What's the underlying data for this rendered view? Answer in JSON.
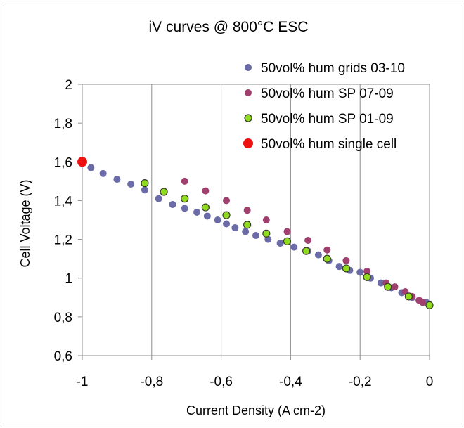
{
  "chart_data": {
    "type": "scatter",
    "title": "iV curves @  800°C   ESC",
    "xlabel": "Current Density (A cm-2)",
    "ylabel": "Cell Voltage (V)",
    "xlim": [
      -1,
      0
    ],
    "ylim": [
      0.6,
      2.0
    ],
    "x_ticks": [
      -1,
      -0.8,
      -0.6,
      -0.4,
      -0.2,
      0
    ],
    "x_tick_labels": [
      "-1",
      "-0,8",
      "-0,6",
      "-0,4",
      "-0,2",
      "0"
    ],
    "y_ticks": [
      0.6,
      0.8,
      1.0,
      1.2,
      1.4,
      1.6,
      1.8,
      2.0
    ],
    "y_tick_labels": [
      "0,6",
      "0,8",
      "1",
      "1,2",
      "1,4",
      "1,6",
      "1,8",
      "2"
    ],
    "grid": "vertical-major",
    "legend_position": "top-right-inside",
    "series": [
      {
        "name": "50vol% hum grids 03-10",
        "color": "#6b6ba8",
        "marker": "circle",
        "x": [
          -0.975,
          -0.94,
          -0.9,
          -0.86,
          -0.82,
          -0.78,
          -0.74,
          -0.705,
          -0.67,
          -0.64,
          -0.61,
          -0.585,
          -0.56,
          -0.53,
          -0.5,
          -0.465,
          -0.43,
          -0.39,
          -0.35,
          -0.32,
          -0.29,
          -0.26,
          -0.23,
          -0.2,
          -0.17,
          -0.14,
          -0.11,
          -0.08,
          -0.05,
          -0.03,
          -0.01
        ],
        "y": [
          1.57,
          1.54,
          1.51,
          1.485,
          1.455,
          1.41,
          1.38,
          1.36,
          1.34,
          1.32,
          1.3,
          1.28,
          1.26,
          1.24,
          1.22,
          1.2,
          1.18,
          1.16,
          1.14,
          1.12,
          1.09,
          1.06,
          1.04,
          1.03,
          1.0,
          0.975,
          0.95,
          0.925,
          0.9,
          0.885,
          0.875
        ]
      },
      {
        "name": "50vol% hum SP 07-09",
        "color": "#a0406e",
        "marker": "circle",
        "x": [
          -0.705,
          -0.645,
          -0.585,
          -0.525,
          -0.47,
          -0.41,
          -0.35,
          -0.295,
          -0.24,
          -0.18,
          -0.125,
          -0.1,
          -0.07,
          -0.05,
          -0.03,
          -0.02
        ],
        "y": [
          1.5,
          1.45,
          1.4,
          1.35,
          1.3,
          1.24,
          1.195,
          1.145,
          1.09,
          1.035,
          0.975,
          0.955,
          0.93,
          0.905,
          0.885,
          0.875
        ]
      },
      {
        "name": "50vol% hum SP 01-09",
        "color": "#8fdc1e",
        "marker": "circle-outlined",
        "x": [
          -0.82,
          -0.765,
          -0.705,
          -0.645,
          -0.585,
          -0.525,
          -0.47,
          -0.41,
          -0.355,
          -0.295,
          -0.24,
          -0.18,
          -0.12,
          -0.06,
          0.0
        ],
        "y": [
          1.49,
          1.445,
          1.41,
          1.365,
          1.325,
          1.275,
          1.23,
          1.19,
          1.14,
          1.1,
          1.05,
          1.005,
          0.955,
          0.905,
          0.86
        ]
      },
      {
        "name": "50vol% hum single cell",
        "color": "#ee1111",
        "marker": "circle-large",
        "x": [
          -1.0
        ],
        "y": [
          1.6
        ]
      }
    ]
  }
}
